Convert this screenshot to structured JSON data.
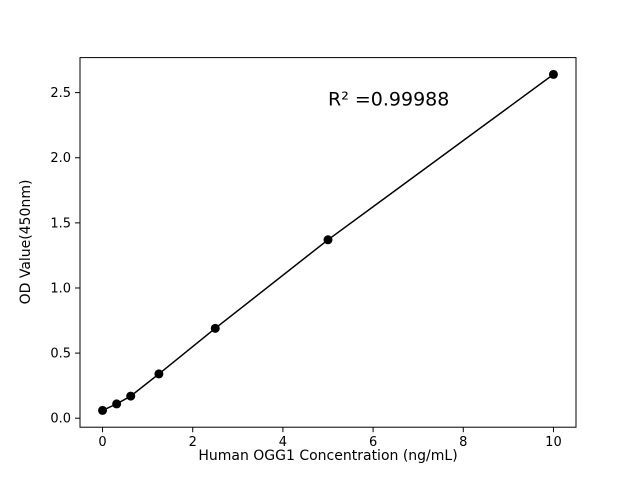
{
  "chart_data": {
    "type": "scatter",
    "title": "",
    "xlabel": "Human OGG1 Concentration (ng/mL)",
    "ylabel": "OD Value(450nm)",
    "annotation": {
      "text": "R² =0.99988",
      "x": 5.0,
      "y": 2.4
    },
    "x": [
      0,
      0.3125,
      0.625,
      1.25,
      2.5,
      5,
      10
    ],
    "y": [
      0.06,
      0.11,
      0.17,
      0.34,
      0.69,
      1.37,
      2.64
    ],
    "xticks": [
      0,
      2,
      4,
      6,
      8,
      10
    ],
    "xtick_labels": [
      "0",
      "2",
      "4",
      "6",
      "8",
      "10"
    ],
    "yticks": [
      0.0,
      0.5,
      1.0,
      1.5,
      2.0,
      2.5
    ],
    "ytick_labels": [
      "0.0",
      "0.5",
      "1.0",
      "1.5",
      "2.0",
      "2.5"
    ],
    "xlim": [
      -0.5,
      10.5
    ],
    "ylim": [
      -0.069,
      2.769
    ],
    "grid": false,
    "legend": false,
    "marker_color": "#000000",
    "line_color": "#000000",
    "background_color": "#ffffff"
  }
}
